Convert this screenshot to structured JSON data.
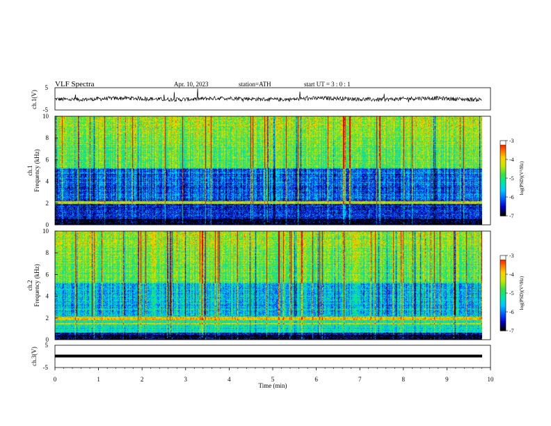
{
  "header": {
    "title": "VLF Spectra",
    "date": "Apr. 10, 2023",
    "station": "station=ATH",
    "start": "start UT = 3 : 0 : 1"
  },
  "chart_data": [
    {
      "type": "line",
      "name": "ch1-waveform",
      "ylabel": "ch.1(V)",
      "ylim": [
        -5,
        5
      ],
      "yticks": [
        "5",
        "-5"
      ],
      "xlim": [
        0,
        10
      ]
    },
    {
      "type": "heatmap",
      "name": "ch1-spectrogram",
      "ylabel": "ch.1\nFrequency (kHz)",
      "ylabel_lines": [
        "ch.1",
        "Frequency (kHz)"
      ],
      "ylim": [
        0,
        10
      ],
      "yticks": [
        "0",
        "2",
        "4",
        "6",
        "8",
        "10"
      ],
      "xlim": [
        0,
        10
      ],
      "colorbar": {
        "label": "log(PSD)(V²/Hz)",
        "range": [
          -7,
          -3
        ],
        "ticks": [
          "-3",
          "-4",
          "-5",
          "-6",
          "-7"
        ]
      }
    },
    {
      "type": "heatmap",
      "name": "ch2-spectrogram",
      "ylabel_lines": [
        "ch.2",
        "Frequency (kHz)"
      ],
      "ylim": [
        0,
        10
      ],
      "yticks": [
        "0",
        "2",
        "4",
        "6",
        "8",
        "10"
      ],
      "xlim": [
        0,
        10
      ],
      "colorbar": {
        "label": "log(PSD)(V²/Hz)",
        "range": [
          -7,
          -3
        ],
        "ticks": [
          "-3",
          "-4",
          "-5",
          "-6",
          "-7"
        ]
      }
    },
    {
      "type": "line",
      "name": "ch3-waveform",
      "ylabel": "ch.3(V)",
      "ylim": [
        -5,
        5
      ],
      "yticks": [
        "5",
        "-5"
      ],
      "xlim": [
        0,
        10
      ]
    }
  ],
  "xaxis": {
    "label": "Time (min)",
    "ticks": [
      "0",
      "1",
      "2",
      "3",
      "4",
      "5",
      "6",
      "7",
      "8",
      "9",
      "10"
    ],
    "data_end": 9.8
  },
  "colors": {
    "scale": [
      "#000000",
      "#0000c8",
      "#0060ff",
      "#00c8ff",
      "#00e8a0",
      "#40e040",
      "#c8e800",
      "#ffd000",
      "#ff6000",
      "#d00000",
      "#ffffff"
    ]
  }
}
